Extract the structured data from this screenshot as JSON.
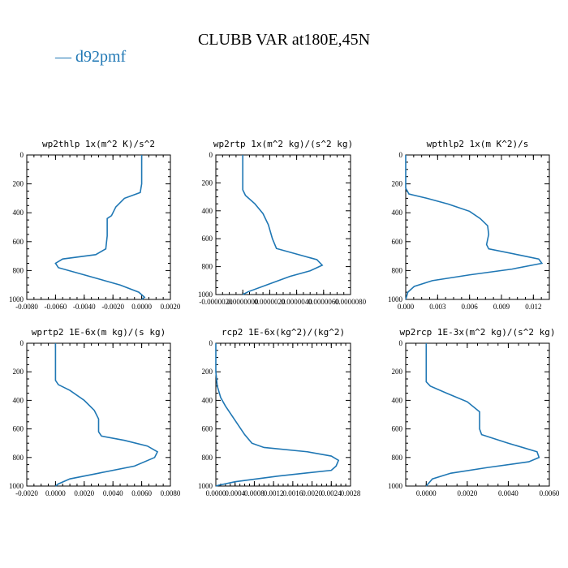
{
  "figure": {
    "title": "CLUBB VAR at180E,45N",
    "legend_label": "— d92pmf",
    "legend_color": "#1f77b4"
  },
  "chart_data": [
    {
      "type": "line",
      "title": "wp2thlp  1x(m^2 K)/s^2",
      "xlim": [
        -0.008,
        0.002
      ],
      "ylim": [
        0,
        1000
      ],
      "y_inverted": true,
      "xticks": [
        "-0.0080",
        "-0.0060",
        "-0.0040",
        "-0.0020",
        "0.0000",
        "0.0020"
      ],
      "xtick_values": [
        -0.008,
        -0.006,
        -0.004,
        -0.002,
        0.0,
        0.002
      ],
      "yticks": [
        "0",
        "200",
        "400",
        "600",
        "800",
        "1000"
      ],
      "ytick_values": [
        0,
        200,
        400,
        600,
        800,
        1000
      ],
      "series": [
        {
          "color": "#1f77b4",
          "x": [
            0.0,
            0.0,
            0.0,
            -0.0001,
            -0.0012,
            -0.0018,
            -0.0021,
            -0.0024,
            -0.0024,
            -0.0025,
            -0.0032,
            -0.0055,
            -0.006,
            -0.0058,
            -0.004,
            -0.0015,
            -0.0002,
            0.0002,
            0.0
          ],
          "y": [
            0,
            100,
            200,
            260,
            300,
            360,
            420,
            440,
            560,
            650,
            690,
            720,
            750,
            780,
            830,
            900,
            950,
            985,
            1000
          ]
        }
      ]
    },
    {
      "type": "line",
      "title": "wp2rtp  1x(m^2 kg)/(s^2 kg)",
      "xlim": [
        -2e-06,
        8e-06
      ],
      "ylim": [
        0,
        1000
      ],
      "y_inverted": true,
      "xticks": [
        "-0.0000020",
        "0.0000000",
        "0.0000020",
        "0.0000040",
        "0.0000060",
        "0.0000080"
      ],
      "xtick_values": [
        -2e-06,
        0.0,
        2e-06,
        4e-06,
        6e-06,
        8e-06
      ],
      "yticks": [
        "0",
        "200",
        "400",
        "600",
        "800",
        "1000"
      ],
      "ytick_values": [
        0,
        200,
        400,
        600,
        800,
        1000
      ],
      "series": [
        {
          "color": "#1f77b4",
          "x": [
            0.0,
            0.0,
            0.0,
            2e-07,
            9e-07,
            1.5e-06,
            1.9e-06,
            2.2e-06,
            2.5e-06,
            4e-06,
            5.5e-06,
            5.9e-06,
            5e-06,
            3.5e-06,
            1.8e-06,
            4e-07,
            0.0
          ],
          "y": [
            0,
            100,
            250,
            290,
            350,
            420,
            500,
            600,
            670,
            710,
            750,
            790,
            830,
            870,
            930,
            980,
            1000
          ]
        }
      ]
    },
    {
      "type": "line",
      "title": "wpthlp2  1x(m K^2)/s",
      "xlim": [
        0.0,
        0.0135
      ],
      "ylim": [
        0,
        1000
      ],
      "y_inverted": true,
      "xticks": [
        "0.000",
        "0.003",
        "0.006",
        "0.009",
        "0.012"
      ],
      "xtick_values": [
        0.0,
        0.003,
        0.006,
        0.009,
        0.012
      ],
      "yticks": [
        "0",
        "200",
        "400",
        "600",
        "800",
        "1000"
      ],
      "ytick_values": [
        0,
        200,
        400,
        600,
        800,
        1000
      ],
      "series": [
        {
          "color": "#1f77b4",
          "x": [
            0.0,
            0.0,
            0.0,
            0.0003,
            0.002,
            0.004,
            0.006,
            0.007,
            0.0077,
            0.0078,
            0.0076,
            0.0078,
            0.0105,
            0.0125,
            0.0128,
            0.01,
            0.006,
            0.0025,
            0.0008,
            0.0002,
            0.0
          ],
          "y": [
            0,
            100,
            230,
            270,
            300,
            340,
            390,
            440,
            490,
            550,
            620,
            650,
            690,
            720,
            750,
            790,
            830,
            870,
            910,
            950,
            1000
          ]
        }
      ]
    },
    {
      "type": "line",
      "title": "wprtp2  1E-6x(m kg)/(s kg)",
      "xlim": [
        -0.002,
        0.008
      ],
      "ylim": [
        0,
        1000
      ],
      "y_inverted": true,
      "xticks": [
        "-0.0020",
        "0.0000",
        "0.0020",
        "0.0040",
        "0.0060",
        "0.0080"
      ],
      "xtick_values": [
        -0.002,
        0.0,
        0.002,
        0.004,
        0.006,
        0.008
      ],
      "yticks": [
        "0",
        "200",
        "400",
        "600",
        "800",
        "1000"
      ],
      "ytick_values": [
        0,
        200,
        400,
        600,
        800,
        1000
      ],
      "series": [
        {
          "color": "#1f77b4",
          "x": [
            0.0,
            0.0,
            0.0,
            0.0002,
            0.001,
            0.002,
            0.0027,
            0.003,
            0.003,
            0.0032,
            0.0048,
            0.0064,
            0.0071,
            0.0069,
            0.0055,
            0.003,
            0.001,
            0.0002,
            0.0
          ],
          "y": [
            0,
            100,
            260,
            290,
            330,
            400,
            470,
            530,
            620,
            650,
            680,
            720,
            760,
            800,
            860,
            910,
            950,
            985,
            1000
          ]
        }
      ]
    },
    {
      "type": "line",
      "title": "rcp2  1E-6x(kg^2)/(kg^2)",
      "xlim": [
        0.0,
        0.0028
      ],
      "ylim": [
        0,
        1000
      ],
      "y_inverted": true,
      "xticks": [
        "0.0000",
        "0.0004",
        "0.0008",
        "0.0012",
        "0.0016",
        "0.0020",
        "0.0024",
        "0.0028"
      ],
      "xtick_values": [
        0.0,
        0.0004,
        0.0008,
        0.0012,
        0.0016,
        0.002,
        0.0024,
        0.0028
      ],
      "yticks": [
        "0",
        "200",
        "400",
        "600",
        "800",
        "1000"
      ],
      "ytick_values": [
        0,
        200,
        400,
        600,
        800,
        1000
      ],
      "series": [
        {
          "color": "#1f77b4",
          "x": [
            0.0,
            0.0,
            3e-05,
            0.0001,
            0.0002,
            0.0004,
            0.0006,
            0.00075,
            0.001,
            0.0019,
            0.0024,
            0.00255,
            0.0025,
            0.0024,
            0.0013,
            0.0004,
            5e-05,
            0.0
          ],
          "y": [
            0,
            200,
            300,
            380,
            440,
            540,
            640,
            700,
            730,
            760,
            790,
            820,
            860,
            890,
            930,
            970,
            995,
            1000
          ]
        }
      ]
    },
    {
      "type": "line",
      "title": "wp2rcp  1E-3x(m^2 kg)/(s^2 kg)",
      "xlim": [
        -0.001,
        0.006
      ],
      "ylim": [
        0,
        1000
      ],
      "y_inverted": true,
      "xticks": [
        "0.0000",
        "0.0020",
        "0.0040",
        "0.0060"
      ],
      "xtick_values": [
        0.0,
        0.002,
        0.004,
        0.006
      ],
      "yticks": [
        "0",
        "200",
        "400",
        "600",
        "800",
        "1000"
      ],
      "ytick_values": [
        0,
        200,
        400,
        600,
        800,
        1000
      ],
      "series": [
        {
          "color": "#1f77b4",
          "x": [
            0.0,
            0.0,
            0.0,
            0.0002,
            0.001,
            0.002,
            0.0026,
            0.0026,
            0.0027,
            0.004,
            0.0054,
            0.0055,
            0.005,
            0.003,
            0.0012,
            0.0003,
            0.0
          ],
          "y": [
            0,
            150,
            270,
            300,
            350,
            410,
            480,
            600,
            640,
            700,
            760,
            800,
            830,
            870,
            910,
            950,
            1000
          ]
        }
      ]
    }
  ]
}
